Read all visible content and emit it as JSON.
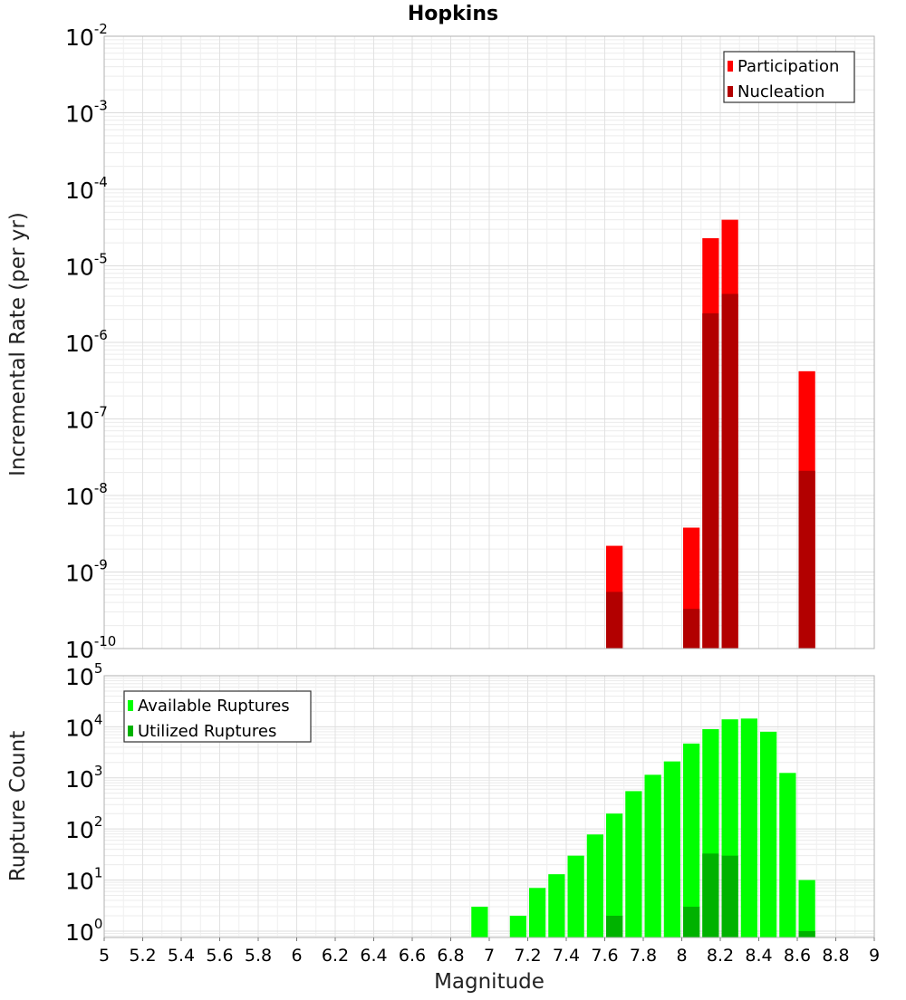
{
  "chart_data": {
    "title": "Hopkins",
    "xlabel": "Magnitude",
    "x_ticks": [
      "5",
      "5.2",
      "5.4",
      "5.6",
      "5.8",
      "6",
      "6.2",
      "6.4",
      "6.6",
      "6.8",
      "7",
      "7.2",
      "7.4",
      "7.6",
      "7.8",
      "8",
      "8.2",
      "8.4",
      "8.6",
      "8.8",
      "9"
    ],
    "xlim": [
      5,
      9
    ],
    "bin_width": 0.1,
    "panels": [
      {
        "type": "bar",
        "ylabel": "Incremental Rate (per yr)",
        "yscale": "log",
        "ylim": [
          1e-10,
          0.01
        ],
        "grid": true,
        "legend_position": "top-right",
        "series": [
          {
            "name": "Participation",
            "color": "#ff0000",
            "points": [
              {
                "x": 7.65,
                "y": 2.2e-09
              },
              {
                "x": 8.05,
                "y": 3.8e-09
              },
              {
                "x": 8.15,
                "y": 2.3e-05
              },
              {
                "x": 8.25,
                "y": 4e-05
              },
              {
                "x": 8.65,
                "y": 4.2e-07
              }
            ]
          },
          {
            "name": "Nucleation",
            "color": "#b20000",
            "points": [
              {
                "x": 7.65,
                "y": 5.5e-10
              },
              {
                "x": 8.05,
                "y": 3.3e-10
              },
              {
                "x": 8.15,
                "y": 2.4e-06
              },
              {
                "x": 8.25,
                "y": 4.3e-06
              },
              {
                "x": 8.65,
                "y": 2.1e-08
              }
            ]
          }
        ]
      },
      {
        "type": "bar",
        "ylabel": "Rupture Count",
        "yscale": "log",
        "ylim": [
          0.75,
          100000.0
        ],
        "grid": true,
        "legend_position": "top-left",
        "series": [
          {
            "name": "Available Ruptures",
            "color": "#00ff00",
            "points": [
              {
                "x": 6.95,
                "y": 3
              },
              {
                "x": 7.15,
                "y": 2
              },
              {
                "x": 7.25,
                "y": 7
              },
              {
                "x": 7.35,
                "y": 13
              },
              {
                "x": 7.45,
                "y": 30
              },
              {
                "x": 7.55,
                "y": 78
              },
              {
                "x": 7.65,
                "y": 200
              },
              {
                "x": 7.75,
                "y": 550
              },
              {
                "x": 7.85,
                "y": 1150
              },
              {
                "x": 7.95,
                "y": 2100
              },
              {
                "x": 8.05,
                "y": 4700
              },
              {
                "x": 8.15,
                "y": 9000
              },
              {
                "x": 8.25,
                "y": 14000
              },
              {
                "x": 8.35,
                "y": 14500
              },
              {
                "x": 8.45,
                "y": 8000
              },
              {
                "x": 8.55,
                "y": 1250
              },
              {
                "x": 8.65,
                "y": 10
              }
            ]
          },
          {
            "name": "Utilized Ruptures",
            "color": "#00b200",
            "points": [
              {
                "x": 7.65,
                "y": 2
              },
              {
                "x": 8.05,
                "y": 3
              },
              {
                "x": 8.15,
                "y": 33
              },
              {
                "x": 8.25,
                "y": 30
              },
              {
                "x": 8.65,
                "y": 1
              }
            ]
          }
        ]
      }
    ]
  }
}
